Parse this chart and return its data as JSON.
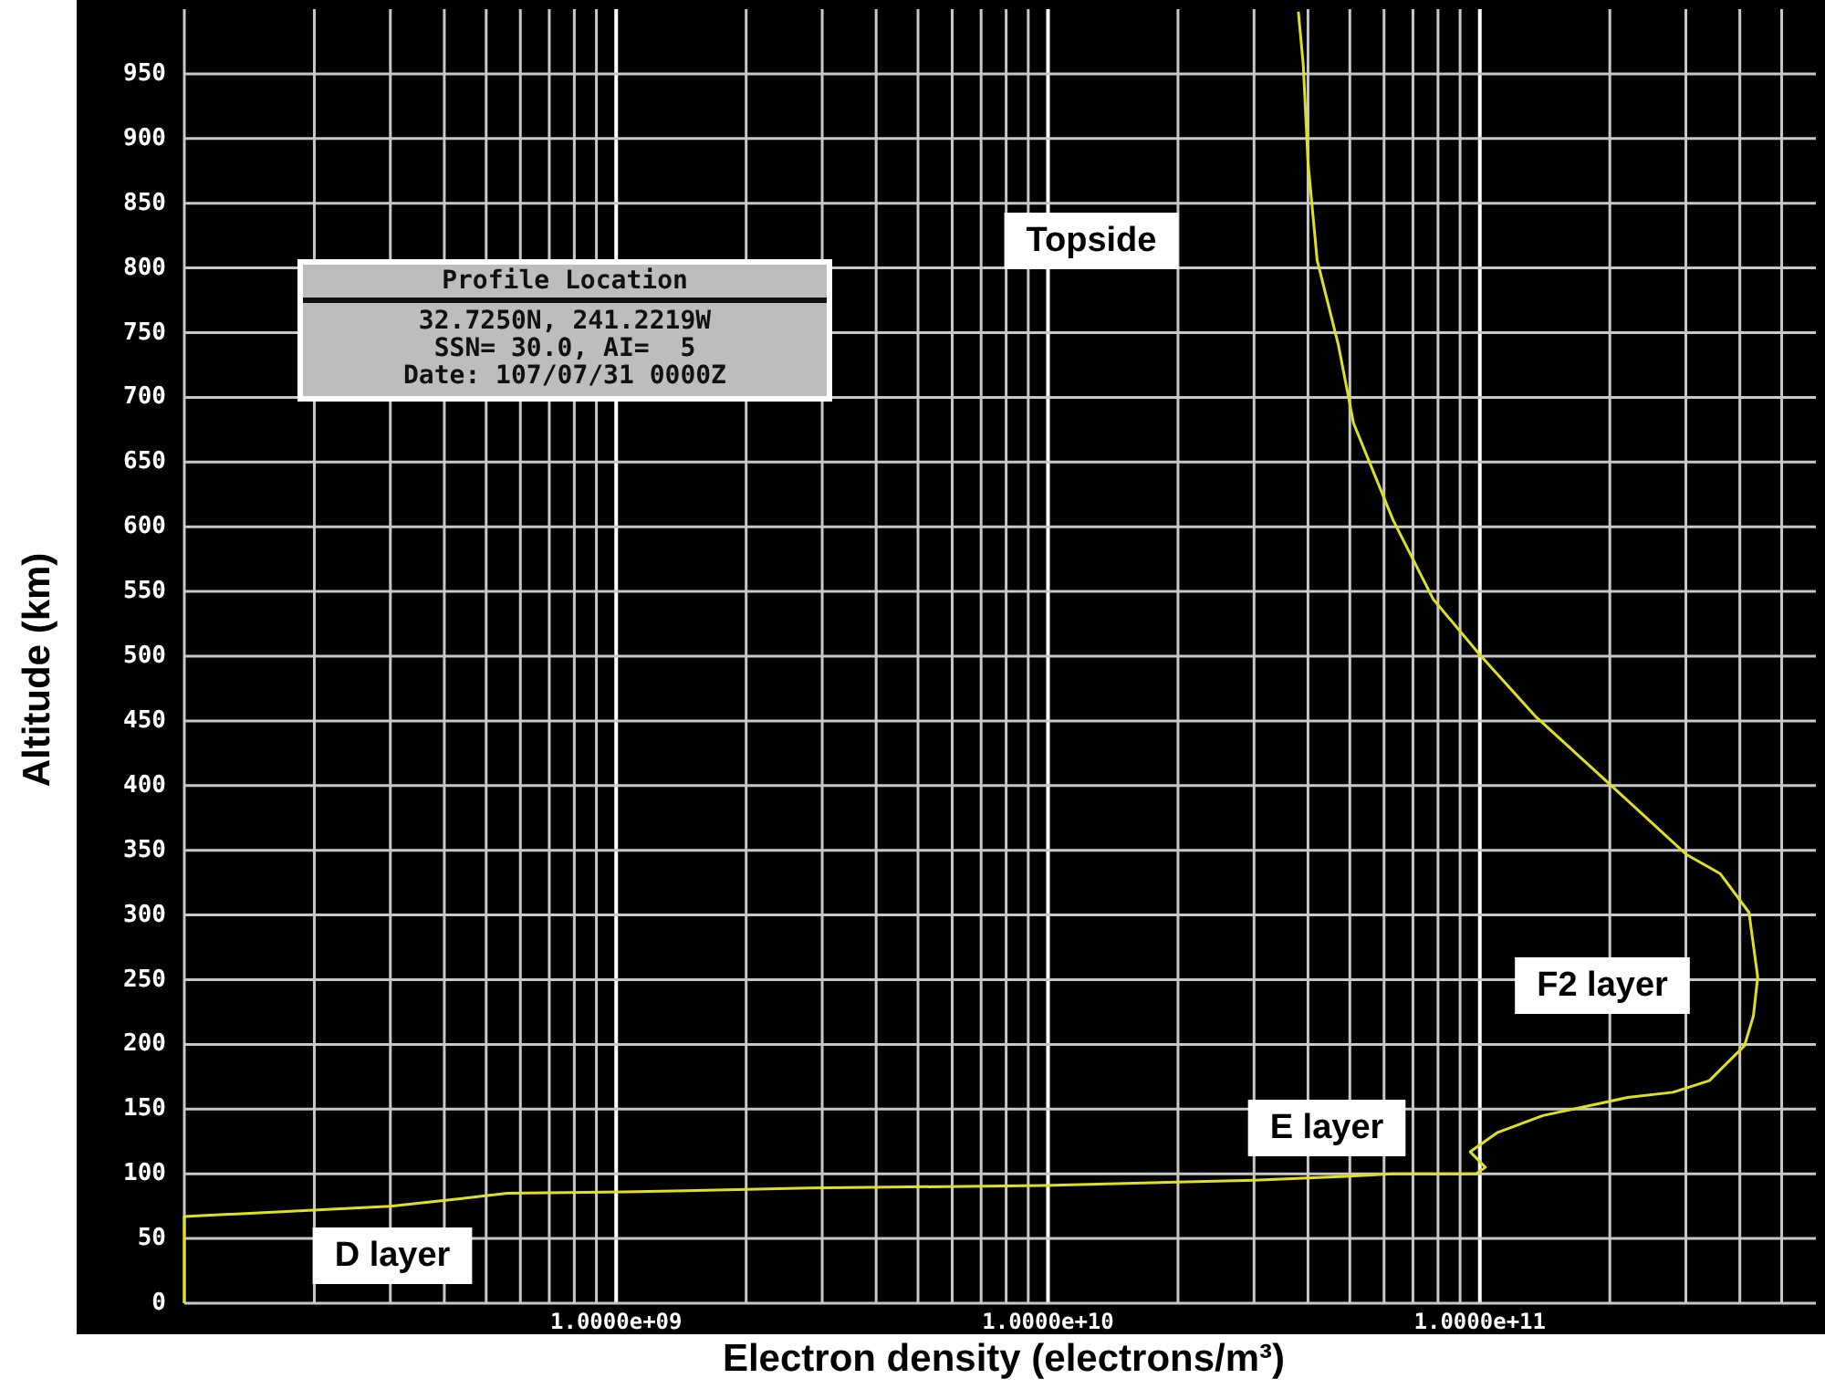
{
  "chart_data": {
    "type": "line",
    "xlabel": "Electron density (electrons/m³)",
    "ylabel": "Altitude (km)",
    "log": "x",
    "xlim": [
      100000000,
      600000000000
    ],
    "ylim": [
      0,
      1000
    ],
    "xticks": [
      {
        "value": 1000000000,
        "label": "1.0000e+09"
      },
      {
        "value": 10000000000,
        "label": "1.0000e+10"
      },
      {
        "value": 100000000000,
        "label": "1.0000e+11"
      }
    ],
    "yticks": [
      0,
      50,
      100,
      150,
      200,
      250,
      300,
      350,
      400,
      450,
      500,
      550,
      600,
      650,
      700,
      750,
      800,
      850,
      900,
      950
    ],
    "grid": true,
    "series": [
      {
        "color": "#e0e020",
        "x": [
          100000000,
          100000000,
          300000000,
          440000000,
          560000000,
          1050000000,
          2800000000,
          9800000000,
          30000000000,
          49000000000,
          63000000000,
          98000000000,
          103000000000,
          95000000000,
          110000000000,
          140000000000,
          220000000000,
          280000000000,
          340000000000,
          410000000000,
          430000000000,
          440000000000,
          420000000000,
          360000000000,
          300000000000,
          200000000000,
          135000000000,
          100000000000,
          78000000000,
          63000000000,
          51000000000,
          47000000000,
          42000000000,
          40000000000,
          39000000000,
          38000000000
        ],
        "values": [
          0,
          67,
          75,
          81,
          85,
          86,
          89,
          91,
          95,
          98,
          100,
          100,
          105,
          117,
          132,
          145,
          159,
          163,
          172,
          199,
          222,
          252,
          302,
          332,
          347,
          401,
          453,
          501,
          544,
          605,
          680,
          741,
          806,
          882,
          957,
          998
        ]
      }
    ],
    "annotations": [
      "Topside",
      "F2 layer",
      "E layer",
      "D layer",
      "Profile Location",
      "32.7250N, 241.2219W",
      "SSN= 30.0, AI=  5",
      "Date: 107/07/31 0000Z"
    ]
  }
}
